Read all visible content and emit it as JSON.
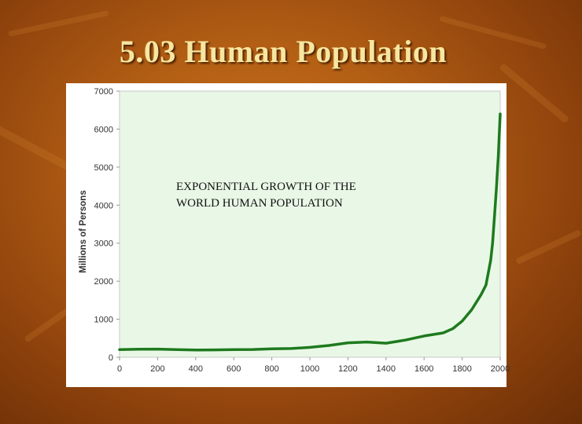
{
  "slide": {
    "title": "5.03 Human Population"
  },
  "chart_data": {
    "type": "line",
    "title": "",
    "xlabel": "",
    "ylabel": "Millions of Persons",
    "xlim": [
      0,
      2000
    ],
    "ylim": [
      0,
      7000
    ],
    "x_ticks": [
      0,
      200,
      400,
      600,
      800,
      1000,
      1200,
      1400,
      1600,
      1800,
      2000
    ],
    "y_ticks": [
      0,
      1000,
      2000,
      3000,
      4000,
      5000,
      6000,
      7000
    ],
    "grid": false,
    "legend": "none",
    "annotation": {
      "lines": [
        "EXPONENTIAL GROWTH OF THE",
        "WORLD HUMAN POPULATION"
      ]
    },
    "series": [
      {
        "color": "#1e7a1e",
        "points": [
          [
            0,
            200
          ],
          [
            100,
            210
          ],
          [
            200,
            215
          ],
          [
            300,
            200
          ],
          [
            400,
            190
          ],
          [
            500,
            195
          ],
          [
            600,
            200
          ],
          [
            700,
            205
          ],
          [
            800,
            220
          ],
          [
            900,
            230
          ],
          [
            1000,
            260
          ],
          [
            1100,
            310
          ],
          [
            1200,
            380
          ],
          [
            1300,
            400
          ],
          [
            1400,
            370
          ],
          [
            1500,
            450
          ],
          [
            1600,
            560
          ],
          [
            1700,
            640
          ],
          [
            1750,
            750
          ],
          [
            1800,
            950
          ],
          [
            1850,
            1250
          ],
          [
            1900,
            1650
          ],
          [
            1925,
            1900
          ],
          [
            1950,
            2550
          ],
          [
            1960,
            3000
          ],
          [
            1970,
            3700
          ],
          [
            1980,
            4450
          ],
          [
            1990,
            5300
          ],
          [
            2000,
            6400
          ]
        ]
      }
    ],
    "colors": {
      "plot_background": "#e9f8e6",
      "line": "#1e7a1e"
    }
  }
}
